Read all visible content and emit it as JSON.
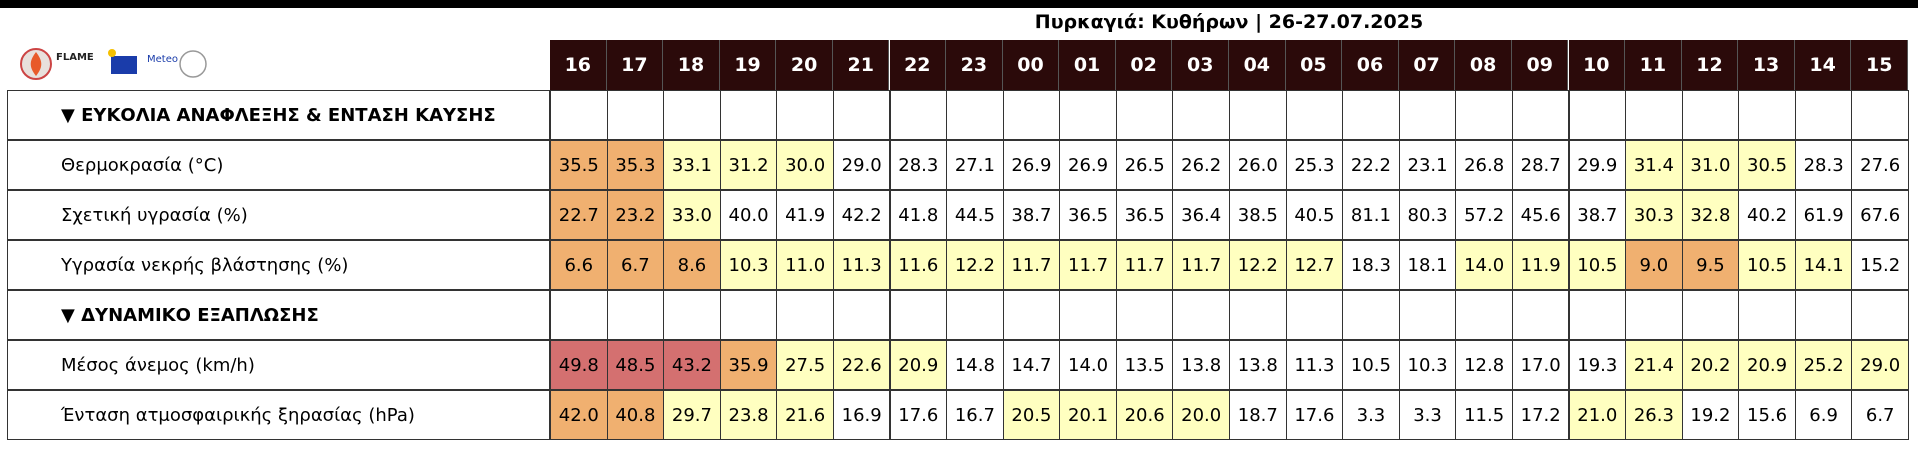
{
  "title": "Πυρκαγιά: Κυθήρων | 26-27.07.2025",
  "logos": [
    "FLAME",
    "Meteo"
  ],
  "hours": [
    "16",
    "17",
    "18",
    "19",
    "20",
    "21",
    "22",
    "23",
    "00",
    "01",
    "02",
    "03",
    "04",
    "05",
    "06",
    "07",
    "08",
    "09",
    "10",
    "11",
    "12",
    "13",
    "14",
    "15"
  ],
  "sections": [
    {
      "title": "▼ ΕΥΚΟΛΙΑ ΑΝΑΦΛΕΞΗΣ & ΕΝΤΑΣΗ ΚΑΥΣΗΣ",
      "rows": [
        {
          "label": "Θερμοκρασία (°C)",
          "values": [
            "35.5",
            "35.3",
            "33.1",
            "31.2",
            "30.0",
            "29.0",
            "28.3",
            "27.1",
            "26.9",
            "26.9",
            "26.5",
            "26.2",
            "26.0",
            "25.3",
            "22.2",
            "23.1",
            "26.8",
            "28.7",
            "29.9",
            "31.4",
            "31.0",
            "30.5",
            "28.3",
            "27.6"
          ],
          "colors": [
            "#f0b070",
            "#f0b070",
            "#ffffc0",
            "#ffffc0",
            "#ffffc0",
            "#ffffff",
            "#ffffff",
            "#ffffff",
            "#ffffff",
            "#ffffff",
            "#ffffff",
            "#ffffff",
            "#ffffff",
            "#ffffff",
            "#ffffff",
            "#ffffff",
            "#ffffff",
            "#ffffff",
            "#ffffff",
            "#ffffc0",
            "#ffffc0",
            "#ffffc0",
            "#ffffff",
            "#ffffff"
          ]
        },
        {
          "label": "Σχετική υγρασία (%)",
          "values": [
            "22.7",
            "23.2",
            "33.0",
            "40.0",
            "41.9",
            "42.2",
            "41.8",
            "44.5",
            "38.7",
            "36.5",
            "36.5",
            "36.4",
            "38.5",
            "40.5",
            "81.1",
            "80.3",
            "57.2",
            "45.6",
            "38.7",
            "30.3",
            "32.8",
            "40.2",
            "61.9",
            "67.6"
          ],
          "colors": [
            "#f0b070",
            "#f0b070",
            "#ffffc0",
            "#ffffff",
            "#ffffff",
            "#ffffff",
            "#ffffff",
            "#ffffff",
            "#ffffff",
            "#ffffff",
            "#ffffff",
            "#ffffff",
            "#ffffff",
            "#ffffff",
            "#ffffff",
            "#ffffff",
            "#ffffff",
            "#ffffff",
            "#ffffff",
            "#ffffc0",
            "#ffffc0",
            "#ffffff",
            "#ffffff",
            "#ffffff"
          ]
        },
        {
          "label": "Υγρασία νεκρής βλάστησης (%)",
          "values": [
            "6.6",
            "6.7",
            "8.6",
            "10.3",
            "11.0",
            "11.3",
            "11.6",
            "12.2",
            "11.7",
            "11.7",
            "11.7",
            "11.7",
            "12.2",
            "12.7",
            "18.3",
            "18.1",
            "14.0",
            "11.9",
            "10.5",
            "9.0",
            "9.5",
            "10.5",
            "14.1",
            "15.2"
          ],
          "colors": [
            "#f0b070",
            "#f0b070",
            "#f0b070",
            "#ffffc0",
            "#ffffc0",
            "#ffffc0",
            "#ffffc0",
            "#ffffc0",
            "#ffffc0",
            "#ffffc0",
            "#ffffc0",
            "#ffffc0",
            "#ffffc0",
            "#ffffc0",
            "#ffffff",
            "#ffffff",
            "#ffffc0",
            "#ffffc0",
            "#ffffc0",
            "#f0b070",
            "#f0b070",
            "#ffffc0",
            "#ffffc0",
            "#ffffff"
          ]
        }
      ]
    },
    {
      "title": "▼ ΔΥΝΑΜΙΚΟ ΕΞΑΠΛΩΣΗΣ",
      "rows": [
        {
          "label": "Μέσος άνεμος (km/h)",
          "values": [
            "49.8",
            "48.5",
            "43.2",
            "35.9",
            "27.5",
            "22.6",
            "20.9",
            "14.8",
            "14.7",
            "14.0",
            "13.5",
            "13.8",
            "13.8",
            "11.3",
            "10.5",
            "10.3",
            "12.8",
            "17.0",
            "19.3",
            "21.4",
            "20.2",
            "20.9",
            "25.2",
            "29.0"
          ],
          "colors": [
            "#d47070",
            "#d47070",
            "#d47070",
            "#f0b070",
            "#ffffc0",
            "#ffffc0",
            "#ffffc0",
            "#ffffff",
            "#ffffff",
            "#ffffff",
            "#ffffff",
            "#ffffff",
            "#ffffff",
            "#ffffff",
            "#ffffff",
            "#ffffff",
            "#ffffff",
            "#ffffff",
            "#ffffff",
            "#ffffc0",
            "#ffffc0",
            "#ffffc0",
            "#ffffc0",
            "#ffffc0"
          ]
        },
        {
          "label": "Ένταση ατμοσφαιρικής ξηρασίας (hPa)",
          "values": [
            "42.0",
            "40.8",
            "29.7",
            "23.8",
            "21.6",
            "16.9",
            "17.6",
            "16.7",
            "20.5",
            "20.1",
            "20.6",
            "20.0",
            "18.7",
            "17.6",
            "3.3",
            "3.3",
            "11.5",
            "17.2",
            "21.0",
            "26.3",
            "19.2",
            "15.6",
            "6.9",
            "6.7"
          ],
          "colors": [
            "#f0b070",
            "#f0b070",
            "#ffffc0",
            "#ffffc0",
            "#ffffc0",
            "#ffffff",
            "#ffffff",
            "#ffffff",
            "#ffffc0",
            "#ffffc0",
            "#ffffc0",
            "#ffffc0",
            "#ffffff",
            "#ffffff",
            "#ffffff",
            "#ffffff",
            "#ffffff",
            "#ffffff",
            "#ffffc0",
            "#ffffc0",
            "#ffffff",
            "#ffffff",
            "#ffffff",
            "#ffffff"
          ]
        }
      ]
    }
  ]
}
